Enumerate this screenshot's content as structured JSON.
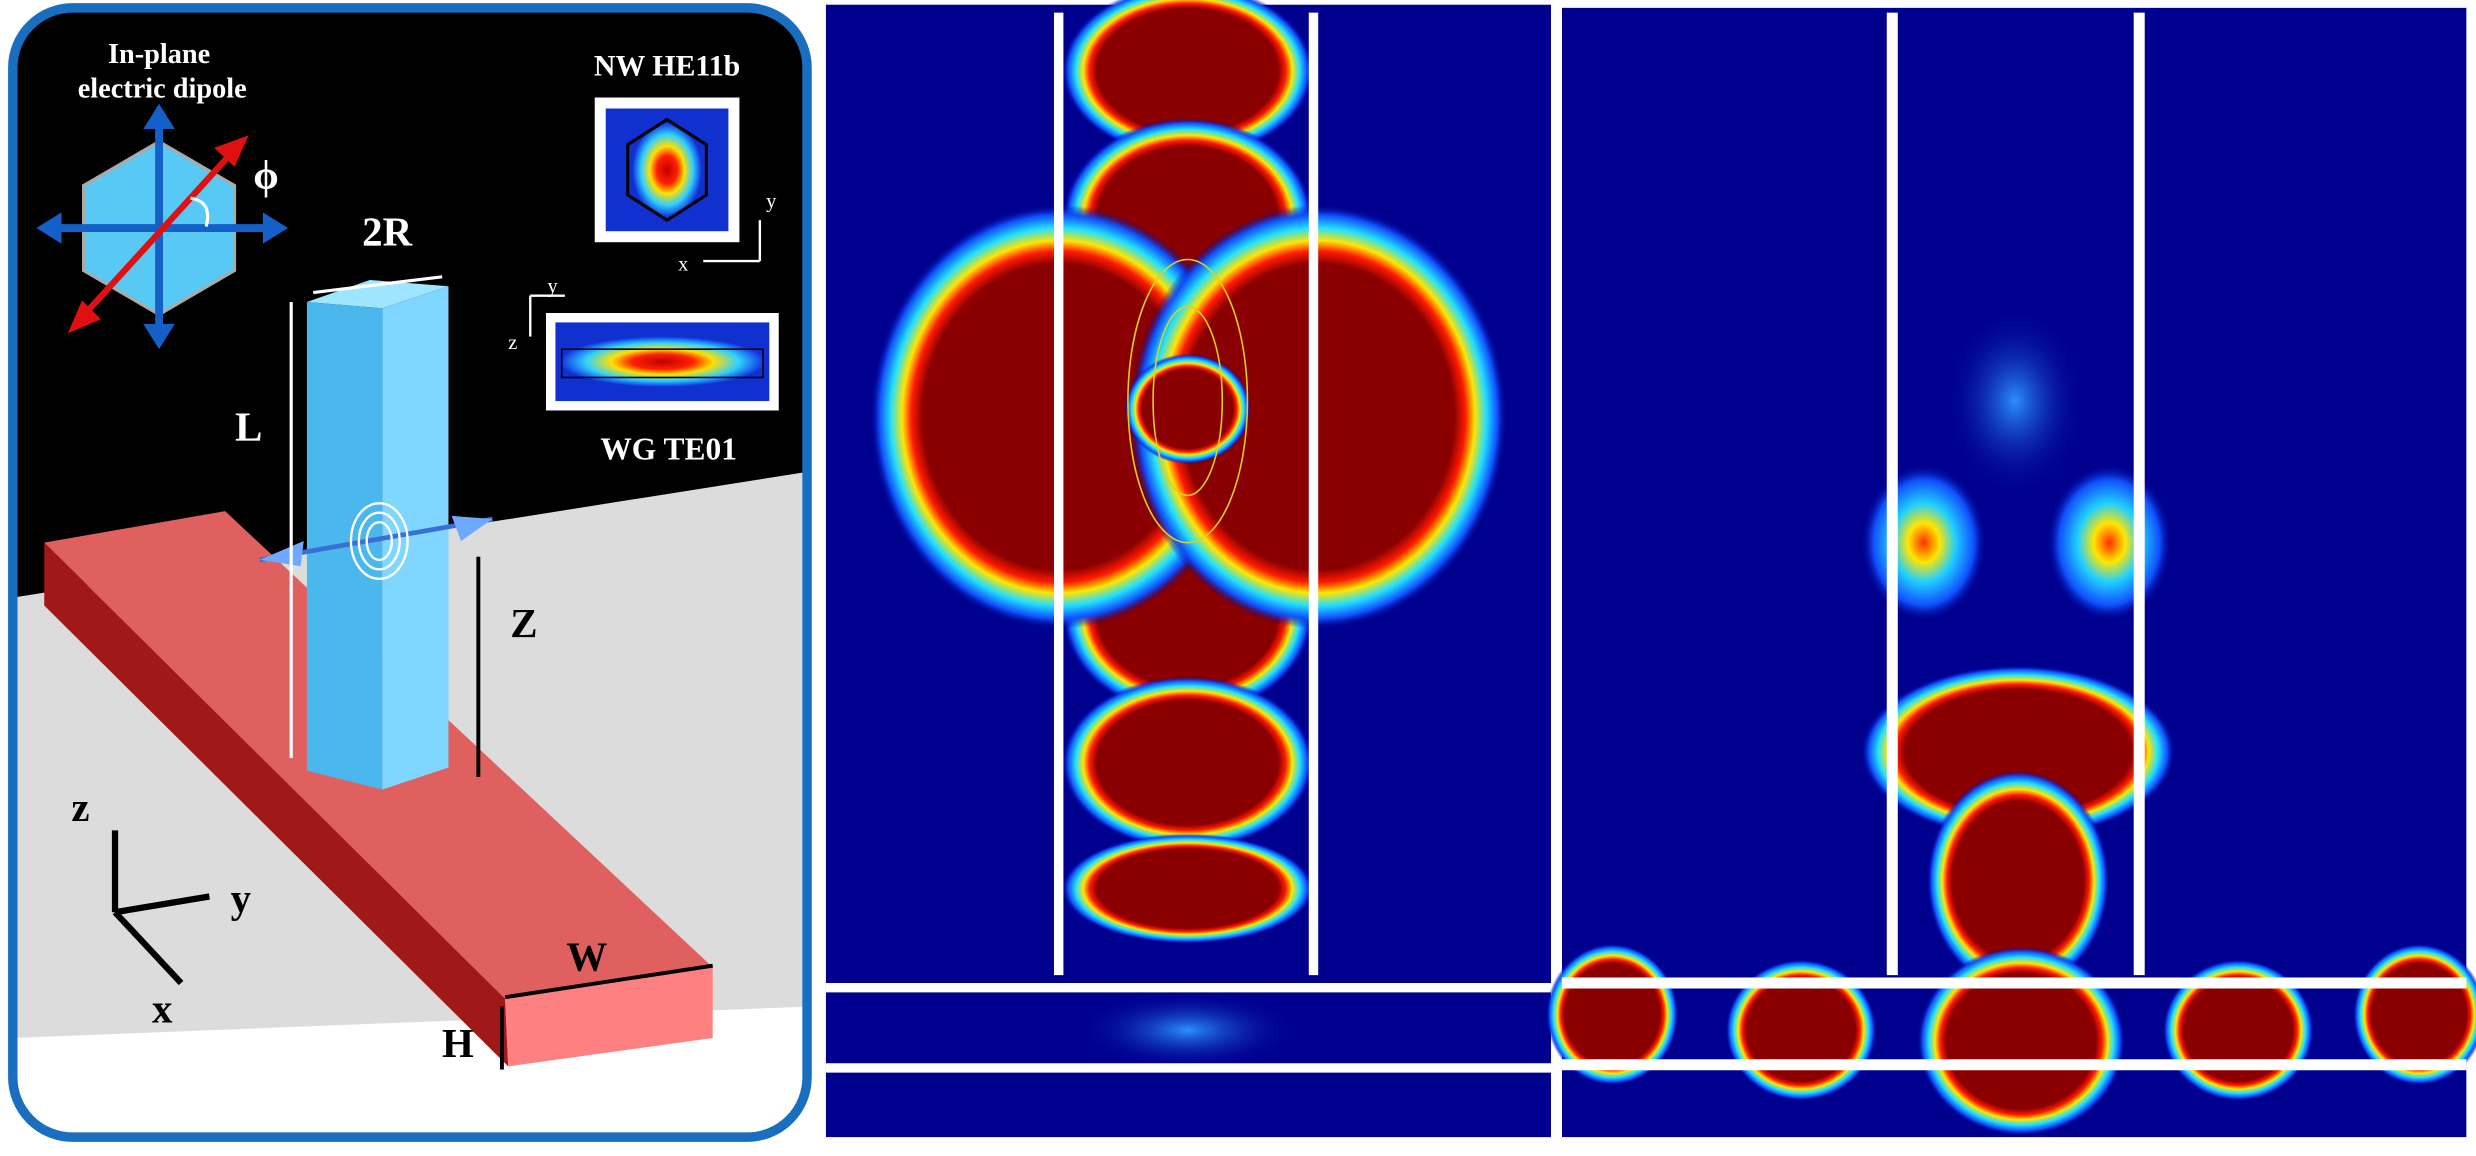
{
  "panel_a": {
    "dipole_label": [
      "In-plane",
      "electric dipole"
    ],
    "phi": "ϕ",
    "radius_label": "2R",
    "nw_mode": "NW HE11b",
    "nw_axes": [
      "y",
      "x"
    ],
    "wg_axes": [
      "y",
      "z"
    ],
    "wg_mode": "WG TE01",
    "length_label": "L",
    "height_label": "Z",
    "width_label": "W",
    "thickness_label": "H",
    "axes": [
      "z",
      "y",
      "x"
    ]
  }
}
